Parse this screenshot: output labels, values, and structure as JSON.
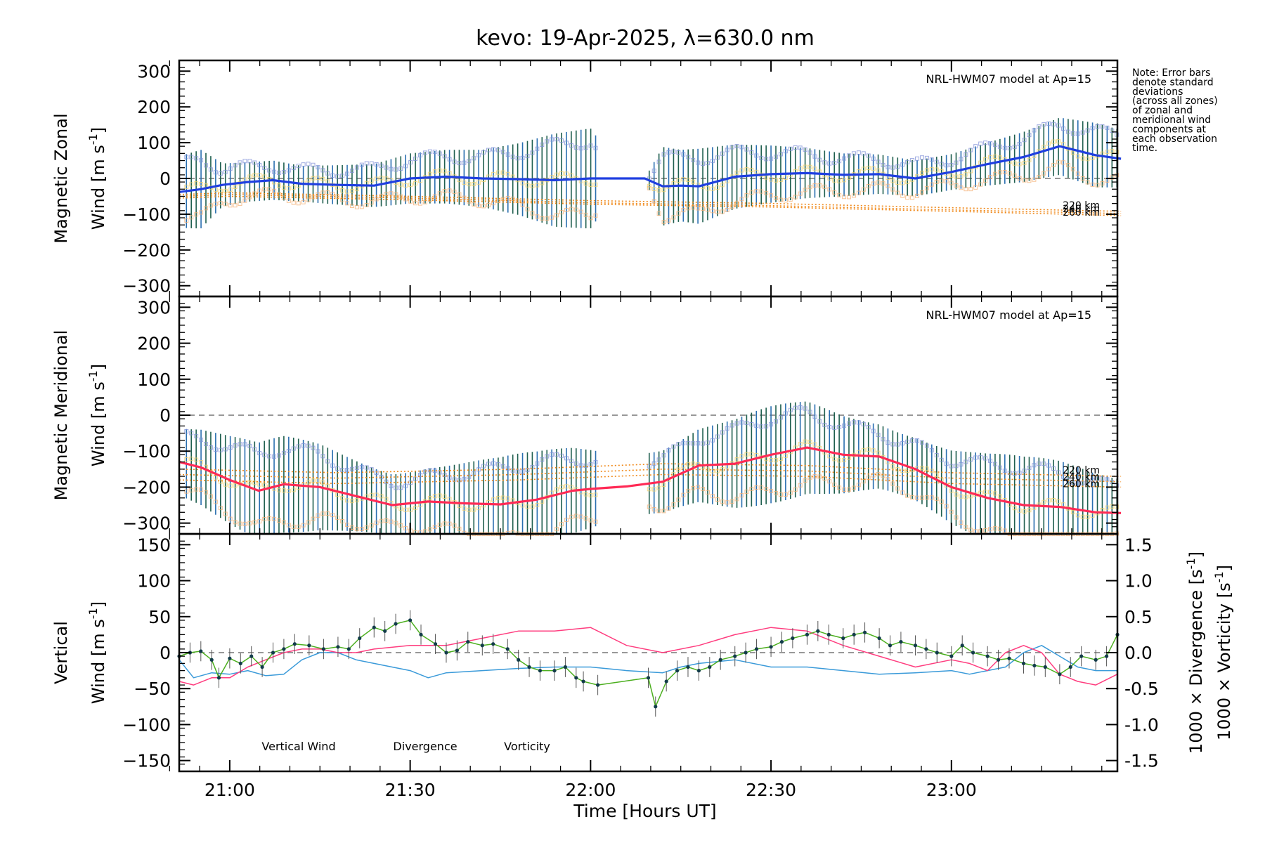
{
  "title": "kevo: 19-Apr-2025, λ=630.0 nm",
  "note": [
    "Note: Error bars",
    "denote standard",
    "deviations",
    "(across all zones)",
    "of zonal and",
    "meridional wind",
    "components at",
    "each observation",
    "time."
  ],
  "colors": {
    "zonal": "#1f3fe0",
    "meridional": "#ff2a55",
    "vertical": "#4caf1f",
    "divergence": "#3a9ad9",
    "vorticity": "#ff3d7f",
    "model": "#f08a1c",
    "errbar_dark": "#1f5f4f",
    "errbar_blue": "#2a6fb0",
    "scatter_orange": "#f4b074",
    "scatter_blue": "#8090d8",
    "scatter_yellow": "#f3d36a"
  },
  "chart_data": [
    {
      "type": "line",
      "panel": "zonal",
      "ylabel": [
        "Magnetic Zonal",
        "Wind [m s",
        "-1",
        "]"
      ],
      "ylim": [
        -330,
        330
      ],
      "yticks": [
        -300,
        -200,
        -100,
        0,
        100,
        200,
        300
      ],
      "model_label": "NRL-HWM07 model at Ap=15",
      "model_heights": [
        "220 km",
        "240 km",
        "260 km"
      ],
      "series": [
        {
          "name": "Zonal wind",
          "x": [
            20.86,
            20.92,
            20.98,
            21.05,
            21.12,
            21.2,
            21.3,
            21.4,
            21.5,
            21.6,
            21.7,
            21.8,
            21.9,
            22.0,
            22.1,
            22.15,
            22.2,
            22.25,
            22.3,
            22.4,
            22.5,
            22.6,
            22.7,
            22.8,
            22.9,
            23.0,
            23.1,
            23.2,
            23.3,
            23.4,
            23.47
          ],
          "y": [
            -38,
            -30,
            -18,
            -10,
            -5,
            -15,
            -18,
            -20,
            0,
            5,
            0,
            -2,
            -5,
            0,
            0,
            0,
            -22,
            -20,
            -22,
            5,
            12,
            15,
            10,
            12,
            0,
            18,
            40,
            60,
            90,
            65,
            55
          ]
        },
        {
          "name": "Model 220 km",
          "x": [
            20.86,
            21.0,
            21.5,
            22.0,
            22.5,
            23.0,
            23.47
          ],
          "y": [
            -45,
            -40,
            -50,
            -62,
            -70,
            -82,
            -92
          ]
        },
        {
          "name": "Model 240 km",
          "x": [
            20.86,
            21.0,
            21.5,
            22.0,
            22.5,
            23.0,
            23.47
          ],
          "y": [
            -50,
            -45,
            -55,
            -68,
            -76,
            -88,
            -98
          ]
        },
        {
          "name": "Model 260 km",
          "x": [
            20.86,
            21.0,
            21.5,
            22.0,
            22.5,
            23.0,
            23.47
          ],
          "y": [
            -55,
            -50,
            -60,
            -72,
            -80,
            -92,
            -104
          ]
        }
      ],
      "errbar_halfwidth": [
        100,
        110,
        60,
        55,
        55,
        50,
        55,
        60,
        70,
        75,
        80,
        100,
        130,
        140,
        0,
        0,
        110,
        100,
        105,
        90,
        80,
        70,
        60,
        55,
        50,
        50,
        60,
        70,
        80,
        90,
        80
      ]
    },
    {
      "type": "line",
      "panel": "meridional",
      "ylabel": [
        "Magnetic Meridional",
        "Wind [m s",
        "-1",
        "]"
      ],
      "ylim": [
        -330,
        330
      ],
      "yticks": [
        -300,
        -200,
        -100,
        0,
        100,
        200,
        300
      ],
      "model_label": "NRL-HWM07 model at Ap=15",
      "model_heights": [
        "220 km",
        "240 km",
        "260 km"
      ],
      "series": [
        {
          "name": "Meridional wind",
          "x": [
            20.86,
            20.92,
            21.0,
            21.08,
            21.15,
            21.25,
            21.35,
            21.45,
            21.55,
            21.65,
            21.75,
            21.85,
            21.95,
            22.0,
            22.1,
            22.2,
            22.3,
            22.4,
            22.5,
            22.6,
            22.7,
            22.8,
            22.9,
            23.0,
            23.1,
            23.2,
            23.3,
            23.4,
            23.47
          ],
          "y": [
            -130,
            -145,
            -180,
            -210,
            -192,
            -200,
            -225,
            -250,
            -240,
            -245,
            -248,
            -235,
            -210,
            -205,
            -198,
            -185,
            -140,
            -135,
            -110,
            -90,
            -110,
            -115,
            -150,
            -200,
            -230,
            -250,
            -255,
            -270,
            -272
          ]
        },
        {
          "name": "Model 220 km",
          "x": [
            20.86,
            21.3,
            21.8,
            22.2,
            22.6,
            23.0,
            23.47
          ],
          "y": [
            -150,
            -160,
            -150,
            -135,
            -140,
            -160,
            -170
          ]
        },
        {
          "name": "Model 240 km",
          "x": [
            20.86,
            21.3,
            21.8,
            22.2,
            22.6,
            23.0,
            23.47
          ],
          "y": [
            -165,
            -175,
            -165,
            -150,
            -155,
            -175,
            -185
          ]
        },
        {
          "name": "Model 260 km",
          "x": [
            20.86,
            21.3,
            21.8,
            22.2,
            22.6,
            23.0,
            23.47
          ],
          "y": [
            -180,
            -190,
            -180,
            -165,
            -170,
            -190,
            -200
          ]
        }
      ]
    },
    {
      "type": "line",
      "panel": "vertical",
      "ylabel_left": [
        "Vertical",
        "Wind [m s",
        "-1",
        "]"
      ],
      "ylabel_right_div": [
        "1000 × Divergence [s",
        "-1",
        "]"
      ],
      "ylabel_right_vor": [
        "1000 × Vorticity [s",
        "-1",
        "]"
      ],
      "ylim": [
        -165,
        165
      ],
      "yticks": [
        -150,
        -100,
        -50,
        0,
        50,
        100,
        150
      ],
      "y2lim": [
        -1.65,
        1.65
      ],
      "y2ticks": [
        "-1.5",
        "-1.0",
        "-0.5",
        "0.0",
        "0.5",
        "1.0",
        "1.5"
      ],
      "x_ticks": [
        "21:00",
        "21:30",
        "22:00",
        "22:30",
        "23:00"
      ],
      "x_tick_values": [
        21.0,
        21.5,
        22.0,
        22.5,
        23.0
      ],
      "xlim": [
        20.86,
        23.46
      ],
      "xlabel": "Time [Hours UT]",
      "legend": [
        "Vertical Wind",
        "Divergence",
        "Vorticity"
      ],
      "series": [
        {
          "name": "Vertical Wind",
          "x": [
            20.86,
            20.89,
            20.92,
            20.95,
            20.97,
            21.0,
            21.03,
            21.06,
            21.09,
            21.12,
            21.15,
            21.18,
            21.22,
            21.26,
            21.3,
            21.33,
            21.36,
            21.4,
            21.43,
            21.46,
            21.5,
            21.53,
            21.57,
            21.6,
            21.63,
            21.66,
            21.7,
            21.73,
            21.77,
            21.8,
            21.83,
            21.86,
            21.9,
            21.93,
            21.96,
            21.98,
            22.02,
            22.16,
            22.18,
            22.21,
            22.24,
            22.27,
            22.3,
            22.33,
            22.36,
            22.4,
            22.43,
            22.46,
            22.5,
            22.53,
            22.56,
            22.6,
            22.63,
            22.66,
            22.7,
            22.73,
            22.76,
            22.8,
            22.83,
            22.86,
            22.9,
            22.93,
            22.96,
            23.0,
            23.03,
            23.06,
            23.1,
            23.13,
            23.16,
            23.2,
            23.23,
            23.26,
            23.3,
            23.33,
            23.36,
            23.4,
            23.43,
            23.46
          ],
          "y": [
            -5,
            0,
            2,
            -10,
            -35,
            -8,
            -15,
            -5,
            -20,
            0,
            5,
            12,
            10,
            5,
            8,
            5,
            20,
            35,
            30,
            40,
            45,
            25,
            12,
            0,
            3,
            15,
            10,
            12,
            5,
            -10,
            -20,
            -25,
            -25,
            -20,
            -35,
            -40,
            -45,
            -35,
            -75,
            -40,
            -25,
            -20,
            -25,
            -20,
            -10,
            -5,
            0,
            5,
            8,
            15,
            20,
            25,
            30,
            25,
            20,
            25,
            28,
            20,
            10,
            15,
            10,
            5,
            0,
            -5,
            10,
            0,
            -5,
            -10,
            -8,
            -15,
            -18,
            -20,
            -30,
            -20,
            -5,
            -10,
            -5,
            25
          ]
        },
        {
          "name": "Divergence",
          "scale": "y2",
          "x": [
            20.86,
            20.9,
            20.95,
            21.0,
            21.05,
            21.1,
            21.15,
            21.2,
            21.25,
            21.3,
            21.35,
            21.4,
            21.45,
            21.5,
            21.55,
            21.6,
            21.7,
            21.8,
            21.9,
            22.0,
            22.1,
            22.2,
            22.25,
            22.3,
            22.4,
            22.5,
            22.6,
            22.7,
            22.8,
            22.9,
            23.0,
            23.05,
            23.1,
            23.15,
            23.2,
            23.25,
            23.3,
            23.35,
            23.4,
            23.46
          ],
          "y": [
            -0.1,
            -0.35,
            -0.28,
            -0.3,
            -0.25,
            -0.32,
            -0.3,
            -0.1,
            0.0,
            0.0,
            -0.1,
            -0.15,
            -0.2,
            -0.25,
            -0.35,
            -0.28,
            -0.25,
            -0.22,
            -0.2,
            -0.2,
            -0.25,
            -0.28,
            -0.2,
            -0.15,
            -0.1,
            -0.2,
            -0.2,
            -0.25,
            -0.3,
            -0.28,
            -0.25,
            -0.3,
            -0.25,
            -0.2,
            0.0,
            0.1,
            -0.05,
            -0.2,
            -0.25,
            -0.25
          ]
        },
        {
          "name": "Vorticity",
          "scale": "y2",
          "x": [
            20.86,
            20.9,
            20.95,
            21.0,
            21.05,
            21.1,
            21.15,
            21.2,
            21.25,
            21.3,
            21.35,
            21.4,
            21.5,
            21.6,
            21.7,
            21.8,
            21.9,
            22.0,
            22.1,
            22.2,
            22.3,
            22.4,
            22.5,
            22.6,
            22.7,
            22.8,
            22.9,
            23.0,
            23.05,
            23.1,
            23.15,
            23.2,
            23.25,
            23.3,
            23.35,
            23.4,
            23.46
          ],
          "y": [
            -0.4,
            -0.45,
            -0.35,
            -0.35,
            -0.2,
            -0.1,
            0.0,
            0.05,
            0.05,
            0.0,
            0.0,
            0.05,
            0.1,
            0.1,
            0.2,
            0.3,
            0.3,
            0.35,
            0.1,
            0.0,
            0.1,
            0.25,
            0.35,
            0.3,
            0.1,
            -0.05,
            -0.2,
            -0.1,
            -0.15,
            -0.25,
            0.0,
            0.1,
            0.0,
            -0.3,
            -0.4,
            -0.45,
            -0.3
          ]
        }
      ]
    }
  ]
}
